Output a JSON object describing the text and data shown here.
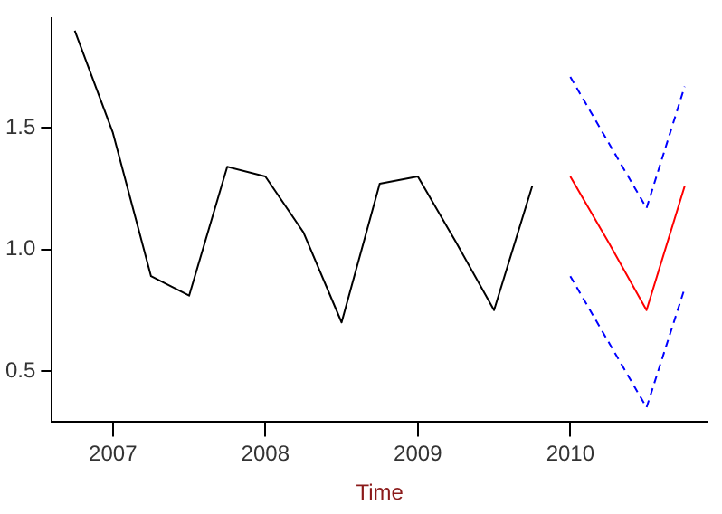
{
  "chart_data": {
    "type": "line",
    "xlabel": "Time",
    "series": [
      {
        "color": "#000000",
        "line_style": "solid",
        "x": [
          2006.75,
          2007,
          2007.25,
          2007.5,
          2007.75,
          2008,
          2008.25,
          2008.5,
          2008.75,
          2009,
          2009.25,
          2009.5,
          2009.75
        ],
        "values": [
          1.9,
          1.48,
          0.89,
          0.81,
          1.34,
          1.3,
          1.07,
          0.7,
          1.27,
          1.3,
          1.03,
          0.75,
          1.26
        ]
      },
      {
        "color": "#ff0000",
        "line_style": "solid",
        "x": [
          2010,
          2010.25,
          2010.5,
          2010.75
        ],
        "values": [
          1.3,
          1.03,
          0.75,
          1.26
        ]
      },
      {
        "color": "#0000ff",
        "line_style": "dashed",
        "x": [
          2010,
          2010.25,
          2010.5,
          2010.75
        ],
        "values": [
          1.71,
          1.44,
          1.17,
          1.67
        ]
      },
      {
        "color": "#0000ff",
        "line_style": "dashed",
        "x": [
          2010,
          2010.25,
          2010.5,
          2010.75
        ],
        "values": [
          0.89,
          0.62,
          0.35,
          0.84
        ]
      }
    ],
    "xlim": [
      2006.6,
      2010.9
    ],
    "xticks": [
      2007,
      2008,
      2009,
      2010
    ],
    "ylim": [
      0.29,
      1.95
    ],
    "yticks": [
      {
        "value": 0.5,
        "label": "0.5"
      },
      {
        "value": 1,
        "label": "1.0"
      },
      {
        "value": 1.5,
        "label": "1.5"
      }
    ],
    "grid": false,
    "legend": false,
    "marker": "none"
  }
}
